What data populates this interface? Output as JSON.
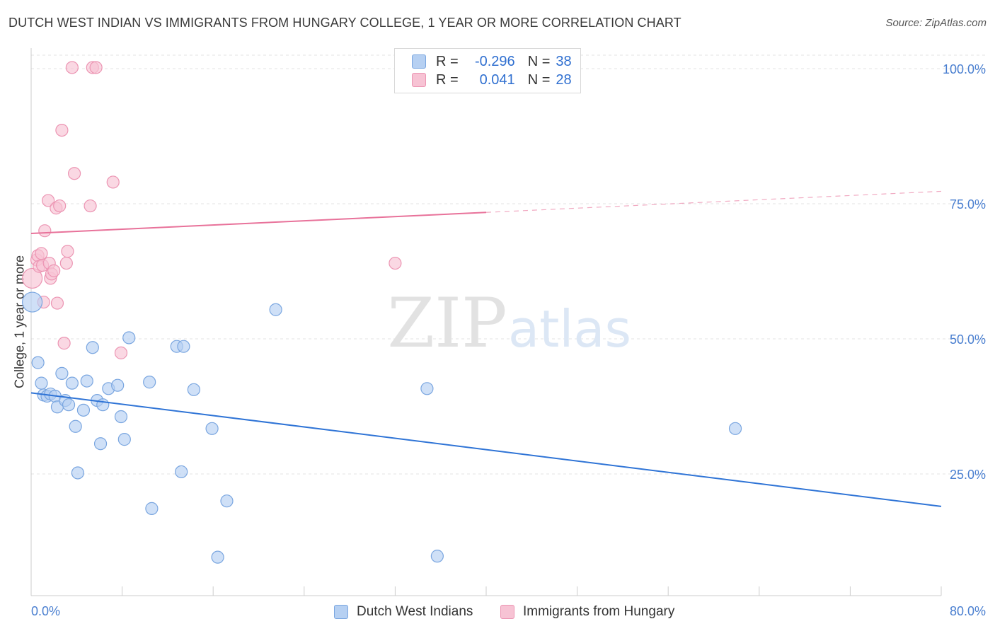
{
  "title": "DUTCH WEST INDIAN VS IMMIGRANTS FROM HUNGARY COLLEGE, 1 YEAR OR MORE CORRELATION CHART",
  "source": "Source: ZipAtlas.com",
  "watermark": {
    "zip": "ZIP",
    "atlas": "atlas"
  },
  "legend": {
    "rows": [
      {
        "r_label": "R =",
        "r_value": "-0.296",
        "n_label": "N =",
        "n_value": "38"
      },
      {
        "r_label": "R =",
        "r_value": "0.041",
        "n_label": "N =",
        "n_value": "28"
      }
    ]
  },
  "colors": {
    "blue_fill": "#b6d0f2",
    "blue_stroke": "#7aa6e0",
    "blue_line": "#2f74d6",
    "pink_fill": "#f7c3d4",
    "pink_stroke": "#ec95b3",
    "pink_line": "#e8729a",
    "axis_text": "#4a7fd0",
    "grid": "#e3e3e3"
  },
  "chart_data": {
    "type": "scatter",
    "title": "DUTCH WEST INDIAN VS IMMIGRANTS FROM HUNGARY COLLEGE, 1 YEAR OR MORE CORRELATION CHART",
    "xlabel": "",
    "ylabel": "College, 1 year or more",
    "xlim": [
      0,
      80
    ],
    "ylim": [
      0,
      102
    ],
    "x_tick_labels": [
      "0.0%",
      "80.0%"
    ],
    "y_ticks": [
      {
        "value": 100,
        "label": "100.0%"
      },
      {
        "value": 75,
        "label": "75.0%"
      },
      {
        "value": 50,
        "label": "50.0%"
      },
      {
        "value": 25,
        "label": "25.0%"
      }
    ],
    "series": [
      {
        "name": "Dutch West Indians",
        "color": "blue",
        "R": -0.296,
        "N": 38,
        "trend": {
          "x0": 0,
          "y0": 40.0,
          "x1": 80,
          "y1": 19.0
        },
        "points": [
          [
            0.1,
            56.8
          ],
          [
            0.6,
            45.6
          ],
          [
            0.9,
            41.8
          ],
          [
            1.1,
            39.6
          ],
          [
            1.4,
            39.4
          ],
          [
            1.7,
            39.8
          ],
          [
            2.1,
            39.4
          ],
          [
            2.3,
            37.4
          ],
          [
            2.7,
            43.6
          ],
          [
            3.0,
            38.6
          ],
          [
            3.3,
            37.8
          ],
          [
            3.6,
            41.8
          ],
          [
            3.9,
            33.8
          ],
          [
            4.1,
            25.2
          ],
          [
            4.6,
            36.8
          ],
          [
            4.9,
            42.2
          ],
          [
            5.4,
            48.4
          ],
          [
            5.8,
            38.6
          ],
          [
            6.1,
            30.6
          ],
          [
            6.3,
            37.8
          ],
          [
            6.8,
            40.8
          ],
          [
            7.6,
            41.4
          ],
          [
            7.9,
            35.6
          ],
          [
            8.2,
            31.4
          ],
          [
            8.6,
            50.2
          ],
          [
            10.4,
            42.0
          ],
          [
            10.6,
            18.6
          ],
          [
            12.8,
            48.6
          ],
          [
            13.2,
            25.4
          ],
          [
            13.4,
            48.6
          ],
          [
            14.3,
            40.6
          ],
          [
            15.9,
            33.4
          ],
          [
            16.4,
            9.6
          ],
          [
            17.2,
            20.0
          ],
          [
            21.5,
            55.4
          ],
          [
            34.8,
            40.8
          ],
          [
            35.7,
            9.8
          ],
          [
            61.9,
            33.4
          ]
        ]
      },
      {
        "name": "Immigrants from Hungary",
        "color": "pink",
        "R": 0.041,
        "N": 28,
        "trend": {
          "x0": 0,
          "y0": 69.5,
          "x1": 40,
          "y1": 73.4,
          "dashed_to_x": 80,
          "dashed_to_y": 77.3
        },
        "points": [
          [
            0.1,
            61.2
          ],
          [
            0.5,
            64.6
          ],
          [
            0.6,
            65.4
          ],
          [
            0.7,
            63.4
          ],
          [
            0.9,
            65.8
          ],
          [
            1.0,
            63.6
          ],
          [
            1.1,
            56.8
          ],
          [
            1.2,
            70.0
          ],
          [
            1.5,
            75.6
          ],
          [
            1.6,
            64.0
          ],
          [
            1.7,
            61.2
          ],
          [
            1.8,
            62.0
          ],
          [
            2.0,
            62.6
          ],
          [
            2.2,
            74.2
          ],
          [
            2.3,
            56.6
          ],
          [
            2.5,
            74.6
          ],
          [
            2.7,
            88.6
          ],
          [
            2.9,
            49.2
          ],
          [
            3.1,
            64.0
          ],
          [
            3.2,
            66.2
          ],
          [
            3.8,
            80.6
          ],
          [
            3.6,
            100.2
          ],
          [
            5.2,
            74.6
          ],
          [
            5.4,
            100.2
          ],
          [
            5.7,
            100.2
          ],
          [
            7.2,
            79.0
          ],
          [
            7.9,
            47.4
          ],
          [
            32.0,
            64.0
          ]
        ]
      }
    ],
    "bottom_legend": [
      "Dutch West Indians",
      "Immigrants from Hungary"
    ]
  }
}
